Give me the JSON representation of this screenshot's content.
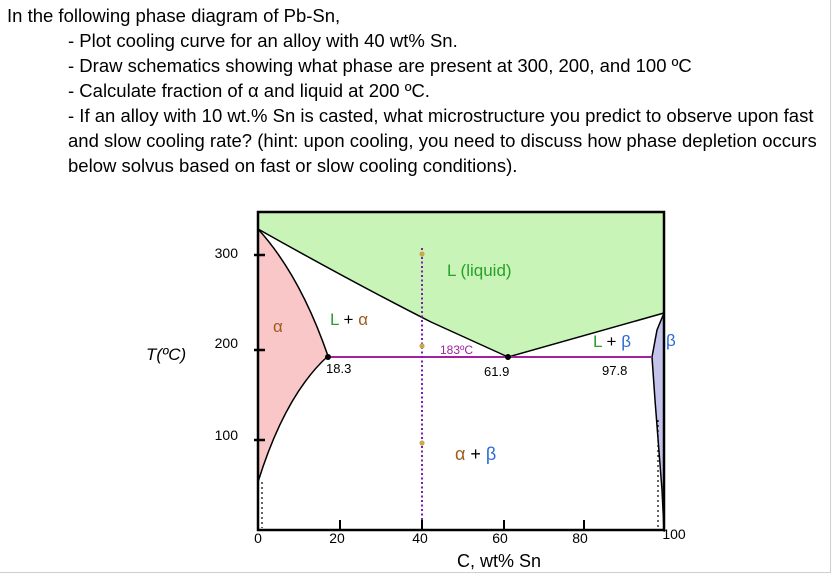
{
  "question": {
    "intro": "In the following phase diagram of Pb-Sn,",
    "items": [
      "- Plot cooling curve for an alloy with 40 wt% Sn.",
      "- Draw schematics showing what phase are present at 300, 200, and 100 ºC",
      "- Calculate fraction of α and liquid at 200 ºC.",
      "- If an alloy with 10 wt.% Sn is casted, what microstructure you predict to observe upon fast and slow cooling rate? (hint: upon cooling, you need to discuss how phase depletion occurs below solvus based on fast or slow cooling conditions)."
    ]
  },
  "diagram": {
    "y_axis_label": "T(ºC)",
    "x_axis_label": "C, wt% Sn",
    "x_ticks": [
      "0",
      "20",
      "40",
      "60",
      "80",
      "100"
    ],
    "y_ticks": [
      "100",
      "200",
      "300"
    ],
    "region_labels": {
      "liquid": "L (liquid)",
      "alpha": "α",
      "l_plus_alpha": "L + α",
      "l_plus_beta": "L + β",
      "beta": "β",
      "alpha_plus_beta": "α + β"
    },
    "eutectic_temp_label": "183ºC",
    "composition_labels": {
      "alpha_max": "18.3",
      "eutectic": "61.9",
      "beta_min": "97.8"
    },
    "colors": {
      "liquid": "#c8f4b8",
      "alpha": "#f9c7c7",
      "beta": "#c3c3ec",
      "eutectic_line": "#a022a0",
      "marker_line": "#7a1fb5",
      "marker_dot": "#c8aa4a",
      "label_green": "#2aa02a",
      "label_brown": "#a05a1e",
      "label_blue": "#2a6ad2"
    },
    "alloy_marker": {
      "composition_wt_pct_sn": 40
    }
  }
}
